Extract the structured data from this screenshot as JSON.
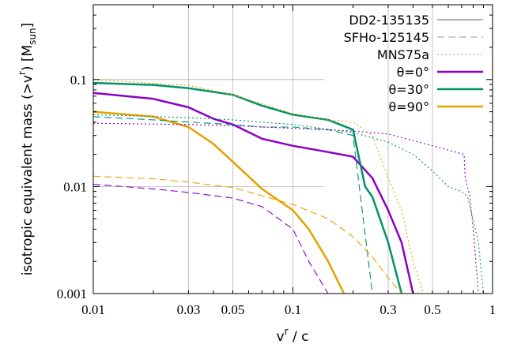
{
  "chart_data": {
    "type": "line",
    "x_scale": "log",
    "y_scale": "log",
    "xlim": [
      0.01,
      1
    ],
    "ylim": [
      0.001,
      0.5
    ],
    "x_tick_labels": [
      "0.01",
      "0.03",
      "0.05",
      "0.1",
      "0.3",
      "0.5",
      "1"
    ],
    "y_tick_labels": [
      "0.1",
      "0.01",
      "0.001"
    ],
    "xlabel_main": "v",
    "xlabel_sup": "r",
    "xlabel_rest": " / c",
    "ylabel_main": "isotropic equivalent mass (>v",
    "ylabel_sup": "r",
    "ylabel_mid": ") [M",
    "ylabel_sub": "sun",
    "ylabel_end": "]",
    "grid": true,
    "legend_position": "top-right",
    "legend": [
      {
        "label": "DD2-135135",
        "color": "#999999",
        "style": "solid"
      },
      {
        "label": "SFHo-125145",
        "color": "#999999",
        "style": "dashed"
      },
      {
        "label": "MNS75a",
        "color": "#999999",
        "style": "dotted"
      },
      {
        "label": "θ=0°",
        "color": "#8a00c8",
        "style": "solid"
      },
      {
        "label": "θ=30°",
        "color": "#00936b",
        "style": "solid"
      },
      {
        "label": "θ=90°",
        "color": "#e6a000",
        "style": "solid"
      }
    ],
    "series": [
      {
        "model": "DD2-135135",
        "angle": "θ=0°",
        "color": "#8a00c8",
        "style": "solid",
        "x": [
          0.01,
          0.02,
          0.03,
          0.04,
          0.05,
          0.07,
          0.1,
          0.15,
          0.2,
          0.25,
          0.3,
          0.35,
          0.4
        ],
        "y": [
          0.075,
          0.066,
          0.055,
          0.043,
          0.038,
          0.028,
          0.024,
          0.021,
          0.019,
          0.012,
          0.006,
          0.003,
          0.001
        ]
      },
      {
        "model": "DD2-135135",
        "angle": "θ=30°",
        "color": "#00936b",
        "style": "solid",
        "x": [
          0.01,
          0.02,
          0.03,
          0.05,
          0.07,
          0.1,
          0.15,
          0.2,
          0.23,
          0.25,
          0.3,
          0.35
        ],
        "y": [
          0.093,
          0.089,
          0.083,
          0.072,
          0.057,
          0.047,
          0.042,
          0.034,
          0.01,
          0.008,
          0.003,
          0.001
        ]
      },
      {
        "model": "DD2-135135",
        "angle": "θ=90°",
        "color": "#e6a000",
        "style": "solid",
        "x": [
          0.01,
          0.02,
          0.03,
          0.04,
          0.05,
          0.07,
          0.1,
          0.12,
          0.15,
          0.18
        ],
        "y": [
          0.05,
          0.045,
          0.036,
          0.025,
          0.017,
          0.0095,
          0.006,
          0.004,
          0.002,
          0.001
        ]
      },
      {
        "model": "SFHo-125145",
        "angle": "θ=0°",
        "color": "#8a00c8",
        "style": "dashed",
        "x": [
          0.01,
          0.02,
          0.03,
          0.05,
          0.07,
          0.1,
          0.12,
          0.15
        ],
        "y": [
          0.0105,
          0.0095,
          0.0088,
          0.0078,
          0.0065,
          0.004,
          0.002,
          0.001
        ]
      },
      {
        "model": "SFHo-125145",
        "angle": "θ=30°",
        "color": "#00936b",
        "style": "dashed",
        "x": [
          0.01,
          0.02,
          0.03,
          0.05,
          0.07,
          0.1,
          0.15,
          0.2,
          0.25
        ],
        "y": [
          0.045,
          0.042,
          0.04,
          0.038,
          0.036,
          0.036,
          0.034,
          0.03,
          0.001
        ]
      },
      {
        "model": "SFHo-125145",
        "angle": "θ=90°",
        "color": "#e6a000",
        "style": "dashed",
        "x": [
          0.01,
          0.02,
          0.03,
          0.05,
          0.07,
          0.1,
          0.15,
          0.2,
          0.25,
          0.3,
          0.35
        ],
        "y": [
          0.0125,
          0.0118,
          0.011,
          0.0098,
          0.0082,
          0.0068,
          0.005,
          0.0034,
          0.0022,
          0.0014,
          0.001
        ]
      },
      {
        "model": "MNS75a",
        "angle": "θ=0°",
        "color": "#8a00c8",
        "style": "dotted",
        "x": [
          0.01,
          0.03,
          0.05,
          0.1,
          0.2,
          0.3,
          0.5,
          0.65,
          0.72,
          0.73,
          0.77,
          0.8,
          0.85
        ],
        "y": [
          0.039,
          0.038,
          0.037,
          0.035,
          0.033,
          0.031,
          0.024,
          0.021,
          0.02,
          0.012,
          0.0081,
          0.004,
          0.001
        ]
      },
      {
        "model": "MNS75a",
        "angle": "θ=30°",
        "color": "#00936b",
        "style": "dotted",
        "x": [
          0.01,
          0.03,
          0.05,
          0.1,
          0.2,
          0.3,
          0.4,
          0.5,
          0.6,
          0.7,
          0.75,
          0.85,
          0.9
        ],
        "y": [
          0.047,
          0.044,
          0.042,
          0.038,
          0.032,
          0.026,
          0.02,
          0.014,
          0.01,
          0.009,
          0.008,
          0.003,
          0.001
        ]
      },
      {
        "model": "MNS75a",
        "angle": "θ=90°",
        "color": "#e6a000",
        "style": "dotted",
        "x": [
          0.01,
          0.03,
          0.05,
          0.1,
          0.15,
          0.2,
          0.25,
          0.3,
          0.35,
          0.4,
          0.45
        ],
        "y": [
          0.1,
          0.088,
          0.072,
          0.048,
          0.042,
          0.04,
          0.03,
          0.012,
          0.006,
          0.002,
          0.001
        ]
      }
    ]
  }
}
